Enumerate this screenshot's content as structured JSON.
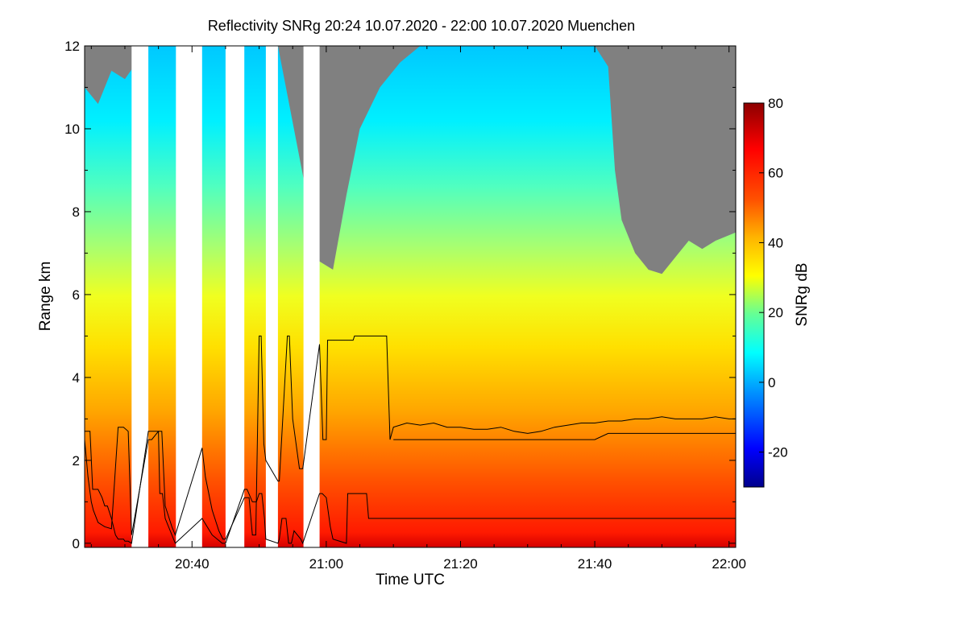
{
  "chart_data": {
    "type": "heatmap",
    "title": "Reflectivity SNRg   20:24 10.07.2020 - 22:00 10.07.2020 Muenchen",
    "xlabel": "Time UTC",
    "ylabel": "Range km",
    "colorbar_label": "SNRg dB",
    "x_range_minutes_utc": [
      1224,
      1321
    ],
    "y_range_km": [
      -0.1,
      12
    ],
    "x_ticks": [
      {
        "minute": 1240,
        "label": "20:40"
      },
      {
        "minute": 1260,
        "label": "21:00"
      },
      {
        "minute": 1280,
        "label": "21:20"
      },
      {
        "minute": 1300,
        "label": "21:40"
      },
      {
        "minute": 1320,
        "label": "22:00"
      }
    ],
    "y_ticks": [
      {
        "value": 0,
        "label": "0"
      },
      {
        "value": 2,
        "label": "2"
      },
      {
        "value": 4,
        "label": "4"
      },
      {
        "value": 6,
        "label": "6"
      },
      {
        "value": 8,
        "label": "8"
      },
      {
        "value": 10,
        "label": "10"
      },
      {
        "value": 12,
        "label": "12"
      }
    ],
    "colorbar_range_db": [
      -30,
      80
    ],
    "colorbar_ticks": [
      {
        "value": 80,
        "label": "80"
      },
      {
        "value": 60,
        "label": "60"
      },
      {
        "value": 40,
        "label": "40"
      },
      {
        "value": 20,
        "label": "20"
      },
      {
        "value": 0,
        "label": "0"
      },
      {
        "value": -20,
        "label": "-20"
      }
    ],
    "colors": {
      "no_signal": "#808080",
      "gap": "#ffffff",
      "line": "#000000",
      "colormap": [
        "#00008c",
        "#0000ff",
        "#0096ff",
        "#00ffff",
        "#64ff96",
        "#ffff00",
        "#ffb400",
        "#ff5000",
        "#ff0000",
        "#8c0000"
      ]
    },
    "data_gaps_minutes": [
      [
        1231.0,
        1233.5
      ],
      [
        1237.6,
        1241.5
      ],
      [
        1245.0,
        1247.8
      ],
      [
        1251.0,
        1252.8
      ],
      [
        1256.6,
        1259.0
      ]
    ],
    "no_signal_above_km": [
      [
        1224,
        11.0
      ],
      [
        1226,
        10.6
      ],
      [
        1228,
        11.4
      ],
      [
        1230,
        11.2
      ],
      [
        1233.5,
        12
      ],
      [
        1241.5,
        12
      ],
      [
        1247.8,
        12
      ],
      [
        1252.8,
        12
      ],
      [
        1259,
        6.8
      ],
      [
        1261,
        6.6
      ],
      [
        1263,
        8.4
      ],
      [
        1265,
        10.0
      ],
      [
        1268,
        11.0
      ],
      [
        1271,
        11.6
      ],
      [
        1274,
        12
      ],
      [
        1280,
        12
      ],
      [
        1300,
        12
      ],
      [
        1302,
        11.5
      ],
      [
        1303,
        9.0
      ],
      [
        1304,
        7.8
      ],
      [
        1306,
        7.0
      ],
      [
        1308,
        6.6
      ],
      [
        1310,
        6.5
      ],
      [
        1312,
        6.9
      ],
      [
        1314,
        7.3
      ],
      [
        1316,
        7.1
      ],
      [
        1318,
        7.3
      ],
      [
        1321,
        7.5
      ]
    ],
    "series": [
      {
        "name": "",
        "x": [
          1224,
          1224.8,
          1225.2,
          1226,
          1226.6,
          1227,
          1227.4,
          1228,
          1228.6,
          1229,
          1229.8,
          1230,
          1230.5,
          1231,
          1233.5,
          1233.7,
          1235,
          1235.2,
          1235.6,
          1236,
          1237.5,
          1241.5,
          1243.0,
          1244.5,
          1245,
          1247.8,
          1248.2,
          1249.0,
          1249.6,
          1250,
          1250.4,
          1250.8,
          1251,
          1252.8,
          1253,
          1253.4,
          1254,
          1254.4,
          1254.8,
          1255.2,
          1256.2,
          1256.5,
          1259,
          1259.4,
          1260,
          1260.6,
          1261,
          1263.0,
          1263.2,
          1264.2,
          1264.6,
          1266,
          1266.3,
          1266.5,
          1275,
          1280,
          1281,
          1283,
          1285,
          1287,
          1290,
          1293,
          1296,
          1299,
          1301,
          1303,
          1306,
          1309,
          1312,
          1315,
          1318,
          1321
        ],
        "y": [
          2.7,
          2.7,
          1.3,
          1.3,
          1.1,
          0.9,
          0.9,
          0.6,
          0.2,
          0.1,
          0.1,
          0.05,
          0.05,
          0.0,
          2.7,
          2.7,
          2.7,
          1.2,
          1.2,
          0.6,
          0.0,
          0.6,
          0.2,
          0.0,
          0.0,
          1.3,
          1.3,
          1.0,
          1.0,
          1.2,
          1.2,
          0.6,
          0.1,
          0.0,
          0.1,
          0.6,
          0.6,
          0.0,
          0.0,
          0.3,
          0.1,
          0.0,
          1.2,
          1.2,
          1.1,
          0.4,
          0.1,
          0.0,
          1.2,
          1.2,
          1.2,
          1.2,
          0.6,
          0.6,
          0.6,
          0.6,
          0.6,
          0.6,
          0.6,
          0.6,
          0.6,
          0.6,
          0.6,
          0.6,
          0.6,
          0.6,
          0.6,
          0.6,
          0.6,
          0.6,
          0.6,
          0.6
        ]
      },
      {
        "name": "",
        "x": [
          1224,
          1224.5,
          1225,
          1225.3,
          1226,
          1227,
          1228,
          1229,
          1229.8,
          1230.5,
          1231,
          1233.5,
          1234,
          1235,
          1235.5,
          1236,
          1237,
          1237.5,
          1241.5,
          1242,
          1243,
          1244,
          1244.6,
          1245,
          1247.8,
          1248.5,
          1249.0,
          1249.5,
          1250,
          1250.3,
          1250.7,
          1251,
          1252.8,
          1253,
          1254.2,
          1254.5,
          1255,
          1256,
          1256.5,
          1259,
          1259.5,
          1260,
          1260.2,
          1261,
          1262,
          1263,
          1264,
          1264.2,
          1265,
          1266,
          1267,
          1268,
          1269,
          1269.5,
          1270,
          1272,
          1274,
          1276,
          1278,
          1280,
          1282,
          1284,
          1286,
          1288,
          1290,
          1292,
          1294,
          1296,
          1298,
          1300,
          1302,
          1304,
          1306,
          1308,
          1310,
          1312,
          1314,
          1316,
          1318,
          1320,
          1321
        ],
        "y": [
          2.5,
          1.6,
          1.0,
          0.8,
          0.5,
          0.4,
          0.35,
          2.8,
          2.8,
          2.7,
          0.2,
          2.5,
          2.5,
          2.7,
          2.7,
          0.9,
          0.4,
          0.2,
          2.3,
          1.6,
          0.8,
          0.3,
          0.1,
          0.1,
          1.1,
          1.1,
          0.2,
          0.2,
          5.0,
          5.0,
          2.4,
          2.0,
          1.5,
          1.5,
          5.0,
          5.0,
          3.0,
          1.8,
          1.8,
          4.8,
          2.5,
          2.5,
          4.9,
          4.9,
          4.9,
          4.9,
          4.9,
          5.0,
          5.0,
          5.0,
          5.0,
          5.0,
          5.0,
          2.5,
          2.8,
          2.9,
          2.85,
          2.9,
          2.8,
          2.8,
          2.75,
          2.75,
          2.8,
          2.7,
          2.65,
          2.7,
          2.8,
          2.85,
          2.9,
          2.9,
          2.95,
          2.95,
          3.0,
          3.0,
          3.05,
          3.0,
          3.0,
          3.0,
          3.05,
          3.0,
          3.0
        ]
      },
      {
        "name": "",
        "x": [
          1270,
          1280,
          1290,
          1300,
          1302,
          1310,
          1321
        ],
        "y": [
          2.5,
          2.5,
          2.5,
          2.5,
          2.65,
          2.65,
          2.65
        ]
      }
    ]
  }
}
